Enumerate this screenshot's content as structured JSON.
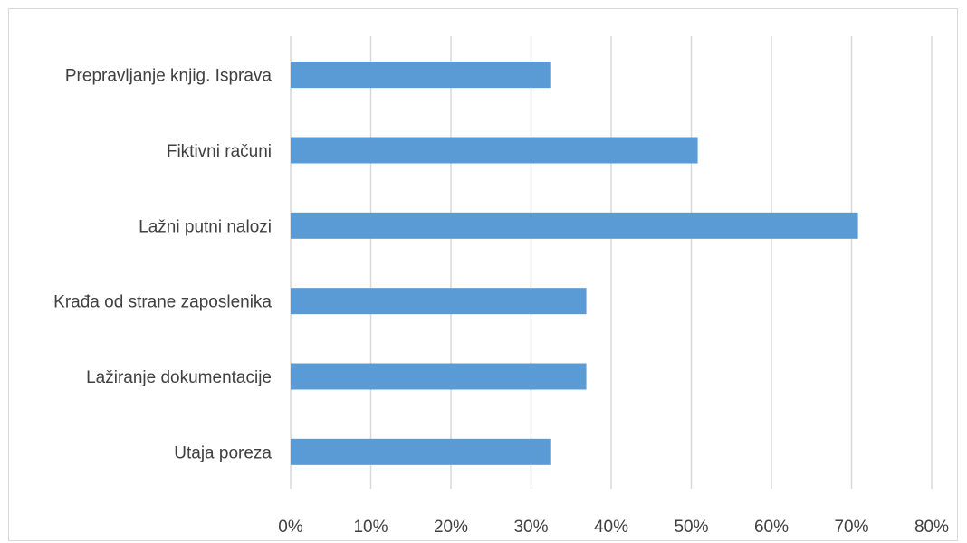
{
  "chart_data": {
    "type": "bar",
    "orientation": "horizontal",
    "title": "",
    "xlabel": "",
    "ylabel": "",
    "categories": [
      "Prepravljanje knjig. Isprava",
      "Fiktivni računi ",
      "Lažni putni nalozi ",
      "Krađa od strane zaposlenika",
      "Lažiranje dokumentacije",
      "Utaja poreza"
    ],
    "values": [
      0.324,
      0.508,
      0.708,
      0.369,
      0.369,
      0.324
    ],
    "xlim": [
      0,
      0.8
    ],
    "x_ticks": [
      0,
      0.1,
      0.2,
      0.3,
      0.4,
      0.5,
      0.6,
      0.7,
      0.8
    ],
    "x_tick_labels": [
      "0%",
      "10%",
      "20%",
      "30%",
      "40%",
      "50%",
      "60%",
      "70%",
      "80%"
    ],
    "grid": true,
    "legend": "none",
    "colors": {
      "bar": "#5b9bd5",
      "grid": "#d9d9d9",
      "text": "#404040",
      "border": "#d9d9d9"
    }
  }
}
